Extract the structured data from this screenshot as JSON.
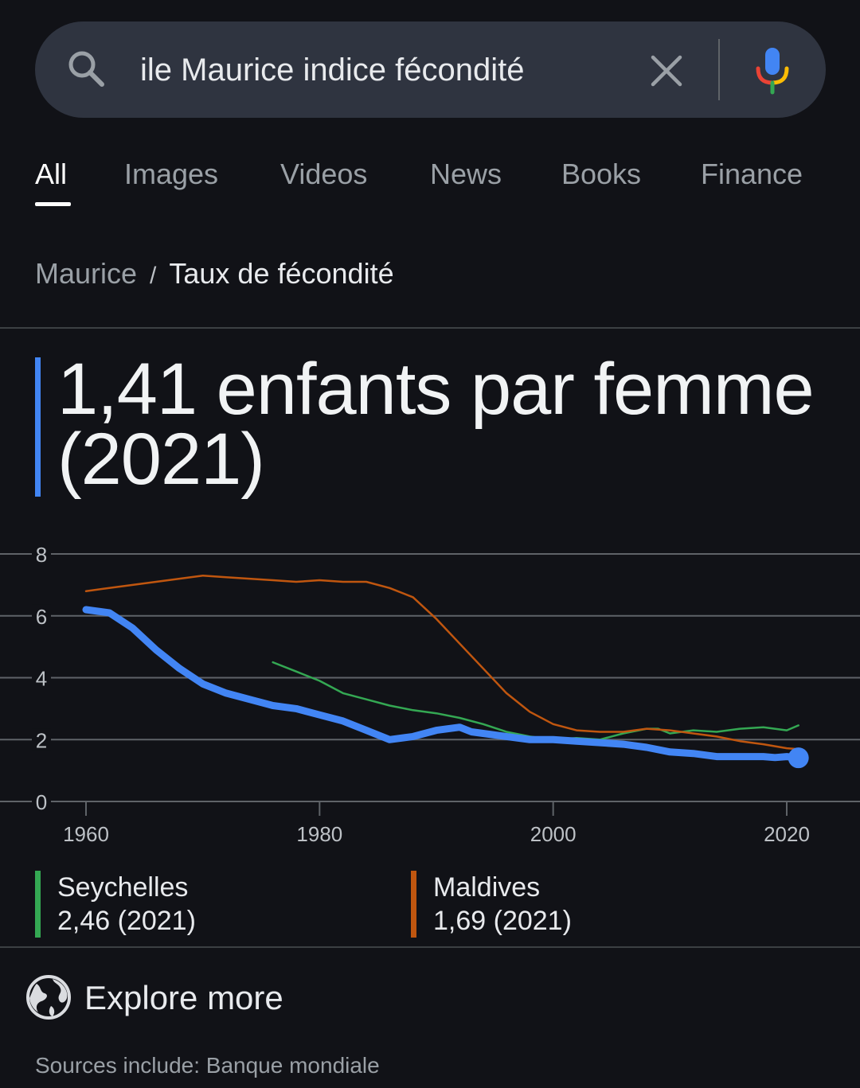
{
  "search": {
    "query": "ile Maurice indice fécondité",
    "icons": {
      "search": "search-icon",
      "clear": "close-icon",
      "voice": "microphone-icon"
    }
  },
  "tabs": [
    {
      "label": "All",
      "active": true
    },
    {
      "label": "Images",
      "active": false
    },
    {
      "label": "Videos",
      "active": false
    },
    {
      "label": "News",
      "active": false
    },
    {
      "label": "Books",
      "active": false
    },
    {
      "label": "Finance",
      "active": false
    }
  ],
  "breadcrumb": {
    "parent": "Maurice",
    "separator": "/",
    "current": "Taux de fécondité"
  },
  "headline": {
    "text": "1,41 enfants par femme (2021)",
    "accent_color": "#4285f4"
  },
  "chart_data": {
    "type": "line",
    "title": "",
    "xlabel": "",
    "ylabel": "",
    "xlim": [
      1960,
      2021
    ],
    "ylim": [
      0,
      8
    ],
    "x_ticks": [
      "1960",
      "1980",
      "2000",
      "2020"
    ],
    "y_ticks": [
      "0",
      "2",
      "4",
      "6",
      "8"
    ],
    "grid": true,
    "series": [
      {
        "name": "",
        "color": "#4285f4",
        "highlight": true,
        "x": [
          1960,
          1962,
          1964,
          1966,
          1968,
          1970,
          1972,
          1974,
          1976,
          1978,
          1980,
          1982,
          1984,
          1986,
          1988,
          1990,
          1992,
          1993,
          1994,
          1996,
          1998,
          2000,
          2002,
          2004,
          2006,
          2008,
          2010,
          2012,
          2014,
          2016,
          2018,
          2019,
          2020,
          2021
        ],
        "y": [
          6.2,
          6.1,
          5.6,
          4.9,
          4.3,
          3.8,
          3.5,
          3.3,
          3.1,
          3.0,
          2.8,
          2.6,
          2.3,
          2.0,
          2.1,
          2.3,
          2.4,
          2.25,
          2.2,
          2.1,
          2.0,
          2.0,
          1.95,
          1.9,
          1.85,
          1.75,
          1.6,
          1.55,
          1.45,
          1.45,
          1.45,
          1.42,
          1.45,
          1.41
        ]
      },
      {
        "name": "Seychelles",
        "color": "#34a853",
        "x": [
          1976,
          1978,
          1980,
          1982,
          1984,
          1986,
          1988,
          1990,
          1992,
          1994,
          1996,
          1998,
          2000,
          2002,
          2004,
          2006,
          2008,
          2009,
          2010,
          2012,
          2014,
          2016,
          2018,
          2020,
          2021
        ],
        "y": [
          4.5,
          4.2,
          3.9,
          3.5,
          3.3,
          3.1,
          2.95,
          2.85,
          2.7,
          2.5,
          2.25,
          2.1,
          2.0,
          2.05,
          2.0,
          2.2,
          2.35,
          2.35,
          2.2,
          2.3,
          2.25,
          2.35,
          2.4,
          2.3,
          2.46
        ]
      },
      {
        "name": "Maldives",
        "color": "#c0560f",
        "x": [
          1960,
          1962,
          1964,
          1966,
          1968,
          1970,
          1972,
          1974,
          1976,
          1978,
          1980,
          1982,
          1984,
          1986,
          1988,
          1990,
          1992,
          1994,
          1996,
          1998,
          2000,
          2002,
          2004,
          2006,
          2008,
          2010,
          2012,
          2014,
          2016,
          2018,
          2020,
          2021
        ],
        "y": [
          6.8,
          6.9,
          7.0,
          7.1,
          7.2,
          7.3,
          7.25,
          7.2,
          7.15,
          7.1,
          7.15,
          7.1,
          7.1,
          6.9,
          6.6,
          5.9,
          5.1,
          4.3,
          3.5,
          2.9,
          2.5,
          2.3,
          2.25,
          2.25,
          2.35,
          2.3,
          2.2,
          2.1,
          1.95,
          1.85,
          1.72,
          1.69
        ]
      }
    ]
  },
  "legend": [
    {
      "name": "Seychelles",
      "value": "2,46 (2021)",
      "color": "#34a853"
    },
    {
      "name": "Maldives",
      "value": "1,69 (2021)",
      "color": "#c0560f"
    }
  ],
  "explore": {
    "label": "Explore more",
    "icon": "globe-icon"
  },
  "sources": "Sources include: Banque mondiale"
}
